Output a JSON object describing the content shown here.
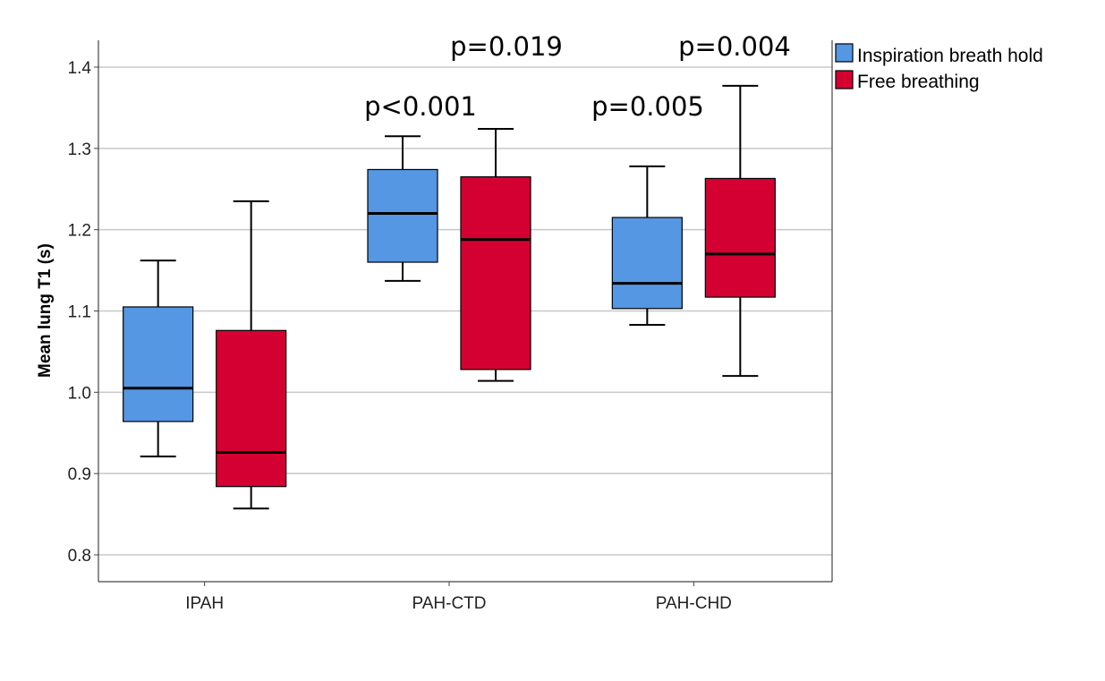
{
  "chart_data": {
    "type": "boxplot",
    "title": "",
    "xlabel": "",
    "ylabel": "Mean lung T1 (s)",
    "ylim": [
      0.77,
      1.435
    ],
    "yticks": [
      "0.8",
      "0.9",
      "1.0",
      "1.1",
      "1.2",
      "1.3",
      "1.4"
    ],
    "ytick_values": [
      0.8,
      0.9,
      1.0,
      1.1,
      1.2,
      1.3,
      1.4
    ],
    "grid": true,
    "legend_position": "top-right",
    "categories": [
      "IPAH",
      "PAH-CTD",
      "PAH-CHD"
    ],
    "series": [
      {
        "name": "Inspiration breath hold",
        "color": "#5597E2",
        "boxes": [
          {
            "min": 0.921,
            "q1": 0.964,
            "median": 1.005,
            "q3": 1.105,
            "max": 1.162
          },
          {
            "min": 1.137,
            "q1": 1.16,
            "median": 1.22,
            "q3": 1.274,
            "max": 1.315
          },
          {
            "min": 1.083,
            "q1": 1.103,
            "median": 1.134,
            "q3": 1.215,
            "max": 1.278
          }
        ]
      },
      {
        "name": "Free breathing",
        "color": "#D40031",
        "boxes": [
          {
            "min": 0.857,
            "q1": 0.884,
            "median": 0.926,
            "q3": 1.076,
            "max": 1.235
          },
          {
            "min": 1.014,
            "q1": 1.028,
            "median": 1.188,
            "q3": 1.265,
            "max": 1.324
          },
          {
            "min": 1.02,
            "q1": 1.117,
            "median": 1.17,
            "q3": 1.263,
            "max": 1.377
          }
        ]
      }
    ],
    "annotations": [
      "p<0.001",
      "p=0.019",
      "p=0.005",
      "p=0.004"
    ]
  }
}
